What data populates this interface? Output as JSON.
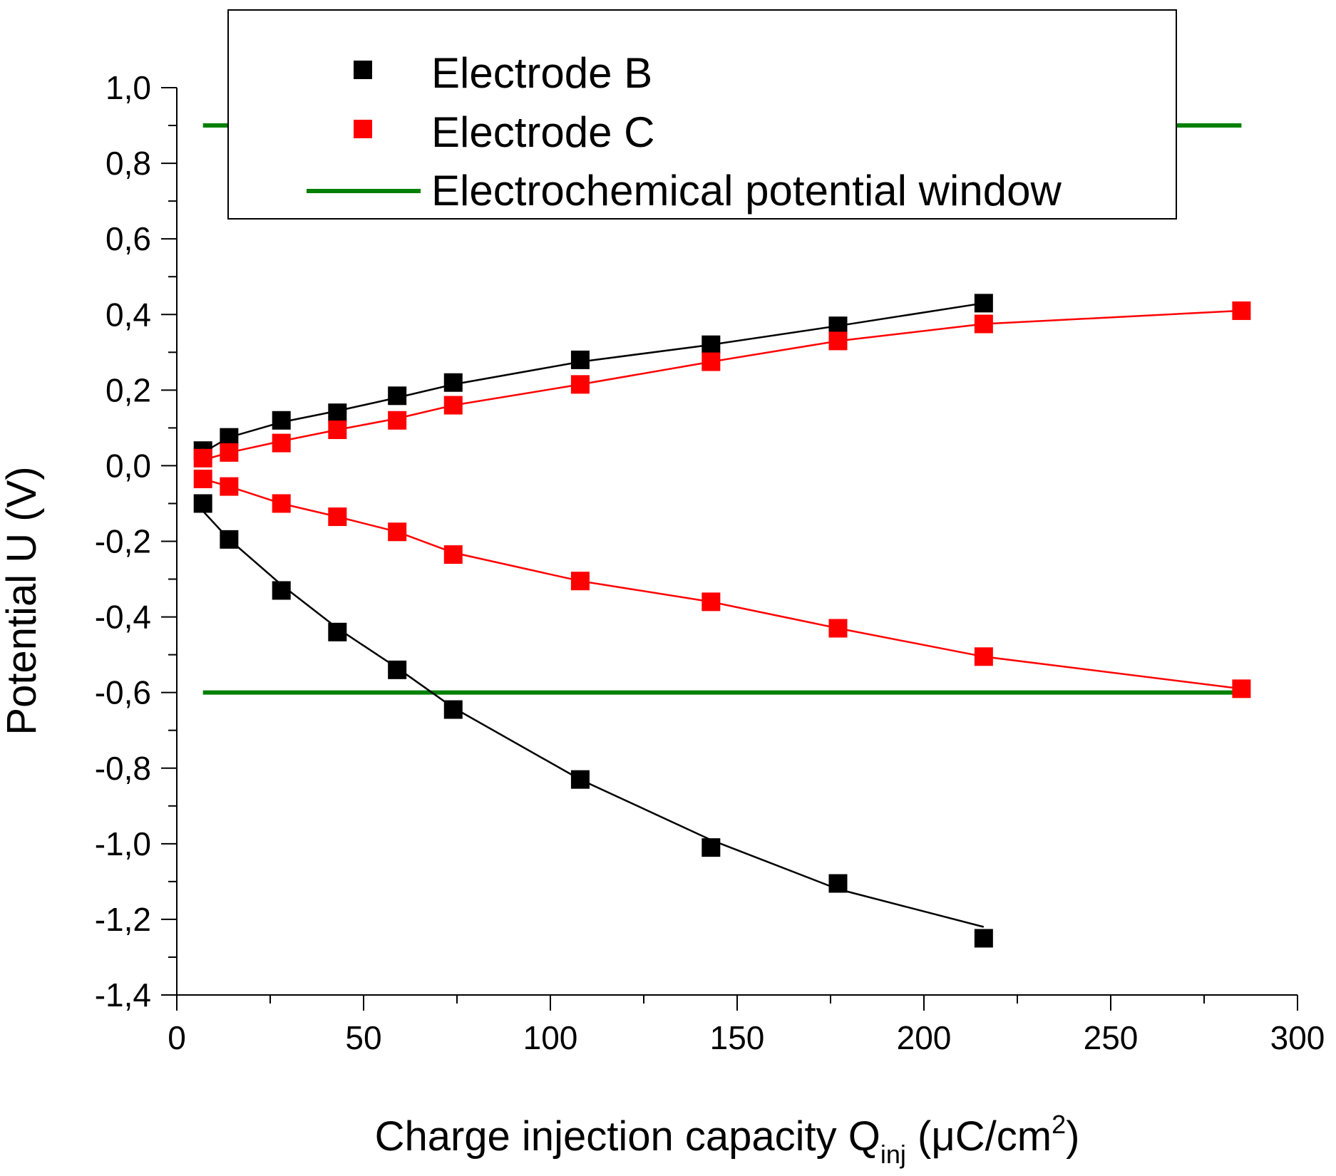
{
  "chart_data": {
    "type": "scatter",
    "title": "",
    "xlabel": {
      "main": "Charge injection capacity Q",
      "sub": "inj",
      "unit_open": " (",
      "mu": "μ",
      "unit_mid": "C/cm",
      "sup": "2",
      "unit_close": ")"
    },
    "ylabel": "Potential U (V)",
    "xlim": [
      0,
      300
    ],
    "ylim": [
      -1.4,
      1.0
    ],
    "xticks": [
      0,
      50,
      100,
      150,
      200,
      250,
      300
    ],
    "xtick_labels": [
      "0",
      "50",
      "100",
      "150",
      "200",
      "250",
      "300"
    ],
    "yticks": [
      -1.4,
      -1.2,
      -1.0,
      -0.8,
      -0.6,
      -0.4,
      -0.2,
      0.0,
      0.2,
      0.4,
      0.6,
      0.8,
      1.0
    ],
    "ytick_labels": [
      "-1,4",
      "-1,2",
      "-1,0",
      "-0,8",
      "-0,6",
      "-0,4",
      "-0,2",
      "0,0",
      "0,2",
      "0,4",
      "0,6",
      "0,8",
      "1,0"
    ],
    "grid": false,
    "legend_position": "top",
    "series": [
      {
        "name": "Electrode B",
        "color": "#000000",
        "marker": "square",
        "branches": [
          {
            "x": [
              7,
              14,
              28,
              43,
              59,
              74,
              108,
              143,
              177,
              216
            ],
            "y": [
              0.04,
              0.075,
              0.12,
              0.14,
              0.185,
              0.22,
              0.28,
              0.32,
              0.37,
              0.43
            ]
          },
          {
            "x": [
              7,
              14,
              28,
              43,
              59,
              74,
              108,
              143,
              177,
              216
            ],
            "y": [
              -0.1,
              -0.195,
              -0.33,
              -0.44,
              -0.54,
              -0.645,
              -0.83,
              -1.01,
              -1.105,
              -1.25
            ]
          }
        ],
        "fit_branches": [
          {
            "x": [
              7,
              14,
              28,
              43,
              59,
              74,
              108,
              143,
              177,
              216
            ],
            "y": [
              0.035,
              0.075,
              0.115,
              0.145,
              0.18,
              0.215,
              0.275,
              0.32,
              0.37,
              0.43
            ]
          },
          {
            "x": [
              7,
              14,
              28,
              43,
              59,
              74,
              108,
              143,
              177,
              216
            ],
            "y": [
              -0.12,
              -0.195,
              -0.315,
              -0.43,
              -0.535,
              -0.64,
              -0.83,
              -0.99,
              -1.12,
              -1.22
            ]
          }
        ]
      },
      {
        "name": "Electrode C",
        "color": "#ff0000",
        "marker": "square",
        "branches": [
          {
            "x": [
              7,
              14,
              28,
              43,
              59,
              74,
              108,
              143,
              177,
              216,
              285
            ],
            "y": [
              0.02,
              0.035,
              0.06,
              0.095,
              0.12,
              0.16,
              0.215,
              0.275,
              0.33,
              0.375,
              0.41
            ]
          },
          {
            "x": [
              7,
              14,
              28,
              43,
              59,
              74,
              108,
              143,
              177,
              216,
              285
            ],
            "y": [
              -0.035,
              -0.055,
              -0.1,
              -0.135,
              -0.175,
              -0.235,
              -0.305,
              -0.36,
              -0.43,
              -0.505,
              -0.59
            ]
          }
        ],
        "fit_branches": [
          {
            "x": [
              7,
              14,
              28,
              43,
              59,
              74,
              108,
              143,
              177,
              216,
              285
            ],
            "y": [
              0.015,
              0.035,
              0.065,
              0.095,
              0.125,
              0.16,
              0.215,
              0.275,
              0.33,
              0.375,
              0.41
            ]
          },
          {
            "x": [
              7,
              14,
              28,
              43,
              59,
              74,
              108,
              143,
              177,
              216,
              285
            ],
            "y": [
              -0.035,
              -0.055,
              -0.1,
              -0.135,
              -0.175,
              -0.23,
              -0.305,
              -0.36,
              -0.43,
              -0.505,
              -0.59
            ]
          }
        ]
      }
    ],
    "lines": [
      {
        "name": "Electrochemical potential window",
        "color": "#008000",
        "x": [
          7,
          285
        ],
        "levels": [
          0.9,
          -0.6
        ]
      }
    ]
  }
}
